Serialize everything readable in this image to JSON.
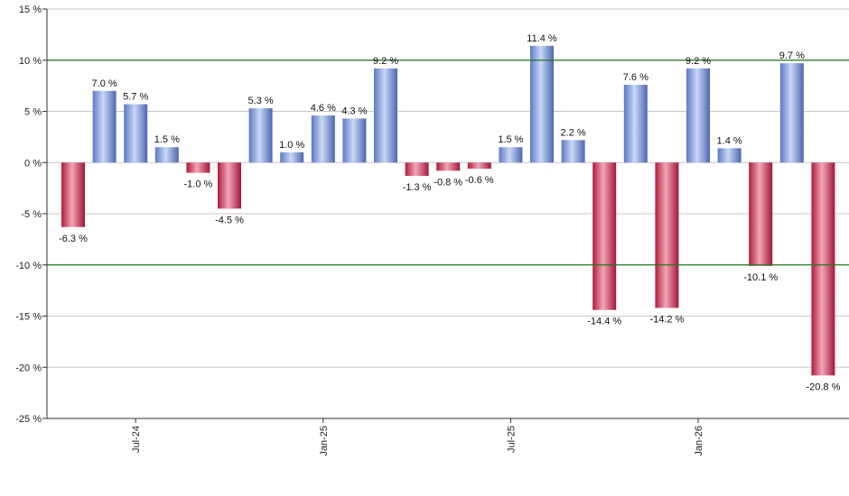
{
  "chart_data": {
    "type": "bar",
    "title": "",
    "xlabel": "",
    "ylabel": "",
    "ylim": [
      -25,
      15
    ],
    "yticks": [
      15,
      10,
      5,
      0,
      -5,
      -10,
      -15,
      -20,
      -25
    ],
    "ytick_suffix": " %",
    "reference_lines": [
      10,
      -10
    ],
    "grid": true,
    "x_tick_labels": [
      {
        "label": "Jul-24",
        "index": 2
      },
      {
        "label": "Jan-25",
        "index": 8
      },
      {
        "label": "Jul-25",
        "index": 14
      },
      {
        "label": "Jan-26",
        "index": 20
      }
    ],
    "values": [
      -6.3,
      7.0,
      5.7,
      1.5,
      -1.0,
      -4.5,
      5.3,
      1.0,
      4.6,
      4.3,
      9.2,
      -1.3,
      -0.8,
      -0.6,
      1.5,
      11.4,
      2.2,
      -14.4,
      7.6,
      -14.2,
      9.2,
      1.4,
      -10.1,
      9.7,
      -20.8
    ],
    "value_labels": [
      "-6.3 %",
      "7.0 %",
      "5.7 %",
      "1.5 %",
      "-1.0 %",
      "-4.5 %",
      "5.3 %",
      "1.0 %",
      "4.6 %",
      "4.3 %",
      "9.2 %",
      "-1.3 %",
      "-0.8 %",
      "-0.6 %",
      "1.5 %",
      "11.4 %",
      "2.2 %",
      "-14.4 %",
      "7.6 %",
      "-14.2 %",
      "9.2 %",
      "1.4 %",
      "-10.1 %",
      "9.7 %",
      "-20.8 %"
    ],
    "colors": {
      "positive": "#6f8fd6",
      "negative": "#c8284a",
      "reference_line": "#1f7a1f",
      "grid": "#c8c8c8",
      "axis": "#333333"
    }
  }
}
